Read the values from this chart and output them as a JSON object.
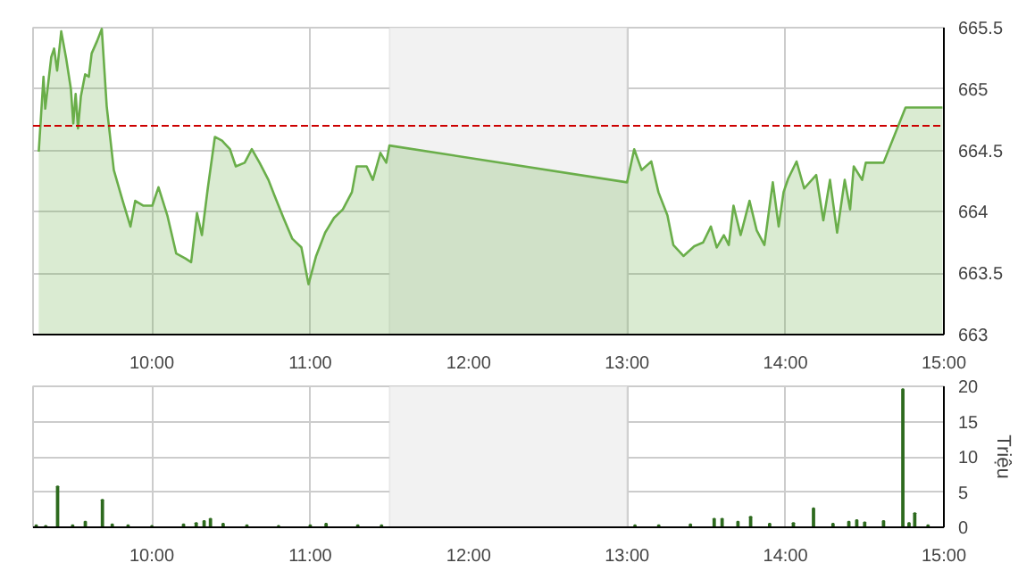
{
  "chart_data": [
    {
      "type": "area",
      "x": [
        9.286,
        9.316,
        9.327,
        9.365,
        9.383,
        9.402,
        9.428,
        9.459,
        9.489,
        9.504,
        9.519,
        9.534,
        9.552,
        9.579,
        9.602,
        9.62,
        9.654,
        9.684,
        9.715,
        9.76,
        9.816,
        9.865,
        9.895,
        9.947,
        10.003,
        10.042,
        10.098,
        10.154,
        10.211,
        10.248,
        10.285,
        10.316,
        10.353,
        10.398,
        10.443,
        10.493,
        10.53,
        10.586,
        10.631,
        10.68,
        10.736,
        10.775,
        10.831,
        10.887,
        10.944,
        10.989,
        11.037,
        11.094,
        11.15,
        11.206,
        11.263,
        11.293,
        11.356,
        11.395,
        11.443,
        11.48,
        11.5,
        13.0,
        13.045,
        13.092,
        13.153,
        13.198,
        13.255,
        13.292,
        13.356,
        13.424,
        13.48,
        13.529,
        13.566,
        13.611,
        13.642,
        13.672,
        13.717,
        13.773,
        13.818,
        13.867,
        13.92,
        13.957,
        13.988,
        14.017,
        14.07,
        14.118,
        14.194,
        14.239,
        14.281,
        14.326,
        14.374,
        14.408,
        14.431,
        14.484,
        14.507,
        14.619,
        14.758,
        14.991
      ],
      "series": [
        {
          "color": "#6aae4a",
          "values": [
            664.49,
            665.1,
            664.84,
            665.26,
            665.33,
            665.15,
            665.47,
            665.25,
            665.0,
            664.72,
            664.96,
            664.68,
            664.94,
            665.12,
            665.1,
            665.29,
            665.39,
            665.49,
            664.86,
            664.34,
            664.09,
            663.88,
            664.09,
            664.05,
            664.05,
            664.2,
            663.97,
            663.66,
            663.62,
            663.59,
            663.99,
            663.81,
            664.19,
            664.61,
            664.58,
            664.51,
            664.37,
            664.4,
            664.51,
            664.4,
            664.26,
            664.13,
            663.95,
            663.78,
            663.71,
            663.41,
            663.64,
            663.83,
            663.95,
            664.02,
            664.16,
            664.37,
            664.37,
            664.26,
            664.48,
            664.4,
            664.54,
            664.24,
            664.51,
            664.34,
            664.41,
            664.16,
            663.97,
            663.73,
            663.64,
            663.72,
            663.75,
            663.88,
            663.71,
            663.81,
            663.73,
            664.05,
            663.81,
            664.09,
            663.85,
            663.73,
            664.24,
            663.88,
            664.16,
            664.27,
            664.41,
            664.19,
            664.3,
            663.93,
            664.26,
            663.83,
            664.26,
            664.02,
            664.37,
            664.26,
            664.4,
            664.4,
            664.85,
            664.85
          ]
        }
      ],
      "xlim": [
        9.25,
        15
      ],
      "ylim": [
        663,
        665.5
      ],
      "yticks": [
        663,
        663.5,
        664,
        664.5,
        665,
        665.5
      ],
      "xticks": [
        {
          "value": 10,
          "label": "10:00"
        },
        {
          "value": 11,
          "label": "11:00"
        },
        {
          "value": 12,
          "label": "12:00"
        },
        {
          "value": 13,
          "label": "13:00"
        },
        {
          "value": 14,
          "label": "14:00"
        },
        {
          "value": 15,
          "label": "15:00"
        }
      ],
      "grid": true,
      "ref_lines": [
        {
          "axis": "y",
          "value": 664.7,
          "color": "#cc0000",
          "line_style": "dashed"
        }
      ],
      "bands": [
        {
          "axis": "x",
          "from": 11.5,
          "to": 13,
          "color": "#f2f2f2"
        }
      ]
    },
    {
      "type": "bar",
      "x": [
        9.27,
        9.33,
        9.405,
        9.5,
        9.58,
        9.688,
        9.75,
        9.85,
        10.0,
        10.2,
        10.28,
        10.33,
        10.37,
        10.45,
        10.6,
        10.8,
        11.0,
        11.1,
        11.3,
        11.45,
        13.05,
        13.2,
        13.4,
        13.55,
        13.6,
        13.7,
        13.78,
        13.9,
        14.05,
        14.177,
        14.3,
        14.4,
        14.45,
        14.5,
        14.619,
        14.741,
        14.78,
        14.816,
        14.9
      ],
      "series": [
        {
          "color": "#2d6a1e",
          "values": [
            0.3,
            0.2,
            5.8,
            0.3,
            0.8,
            3.9,
            0.4,
            0.3,
            0.2,
            0.4,
            0.6,
            0.9,
            1.2,
            0.5,
            0.3,
            0.2,
            0.3,
            0.5,
            0.3,
            0.3,
            0.3,
            0.3,
            0.4,
            1.2,
            1.2,
            0.8,
            1.5,
            0.5,
            0.6,
            2.7,
            0.5,
            0.8,
            1.0,
            0.7,
            0.9,
            19.6,
            0.6,
            2.0,
            0.3
          ]
        }
      ],
      "ylabel": "Triệu",
      "xlim": [
        9.25,
        15
      ],
      "ylim": [
        0,
        20
      ],
      "yticks": [
        0,
        5,
        10,
        15,
        20
      ],
      "xticks": [
        {
          "value": 10,
          "label": "10:00"
        },
        {
          "value": 11,
          "label": "11:00"
        },
        {
          "value": 12,
          "label": "12:00"
        },
        {
          "value": 13,
          "label": "13:00"
        },
        {
          "value": 14,
          "label": "14:00"
        },
        {
          "value": 15,
          "label": "15:00"
        }
      ],
      "grid": true,
      "bands": [
        {
          "axis": "x",
          "from": 11.5,
          "to": 13,
          "color": "#f2f2f2"
        }
      ]
    }
  ]
}
